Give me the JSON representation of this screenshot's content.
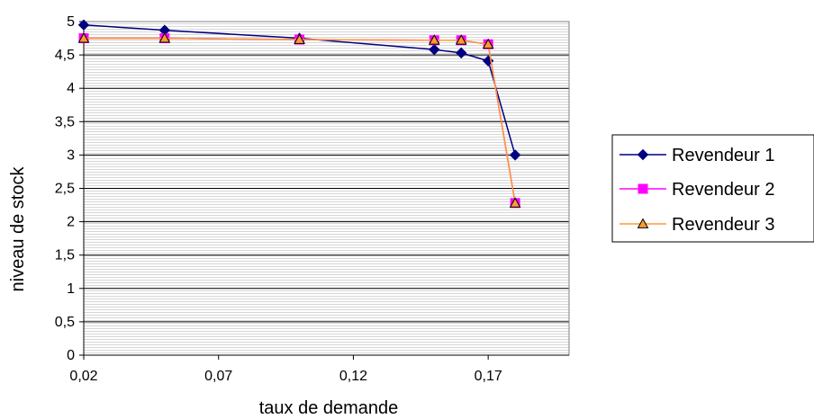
{
  "chart_data": {
    "type": "line",
    "title": "",
    "xlabel": "taux de demande",
    "ylabel": "niveau de stock",
    "xlim": [
      0.02,
      0.2
    ],
    "ylim": [
      0,
      5
    ],
    "x_ticks": [
      "0,02",
      "0,07",
      "0,12",
      "0,17"
    ],
    "x_tick_values": [
      0.02,
      0.07,
      0.12,
      0.17
    ],
    "y_ticks": [
      "0",
      "0,5",
      "1",
      "1,5",
      "2",
      "2,5",
      "3",
      "3,5",
      "4",
      "4,5",
      "5"
    ],
    "y_tick_values": [
      0,
      0.5,
      1,
      1.5,
      2,
      2.5,
      3,
      3.5,
      4,
      4.5,
      5
    ],
    "grid": "horizontal",
    "legend_position": "right",
    "series": [
      {
        "name": "Revendeur 1",
        "color": "#000080",
        "marker": "diamond",
        "x": [
          0.02,
          0.05,
          0.1,
          0.15,
          0.16,
          0.17,
          0.18
        ],
        "y": [
          4.95,
          4.87,
          4.75,
          4.58,
          4.53,
          4.41,
          3.0
        ]
      },
      {
        "name": "Revendeur 2",
        "color": "#ff00ff",
        "marker": "square",
        "x": [
          0.02,
          0.05,
          0.1,
          0.15,
          0.16,
          0.17,
          0.18
        ],
        "y": [
          4.75,
          4.75,
          4.73,
          4.72,
          4.72,
          4.66,
          2.28
        ]
      },
      {
        "name": "Revendeur 3",
        "color": "#ff9933",
        "marker": "triangle",
        "x": [
          0.02,
          0.05,
          0.1,
          0.15,
          0.16,
          0.17,
          0.18
        ],
        "y": [
          4.75,
          4.75,
          4.73,
          4.72,
          4.72,
          4.66,
          2.28
        ]
      }
    ]
  }
}
